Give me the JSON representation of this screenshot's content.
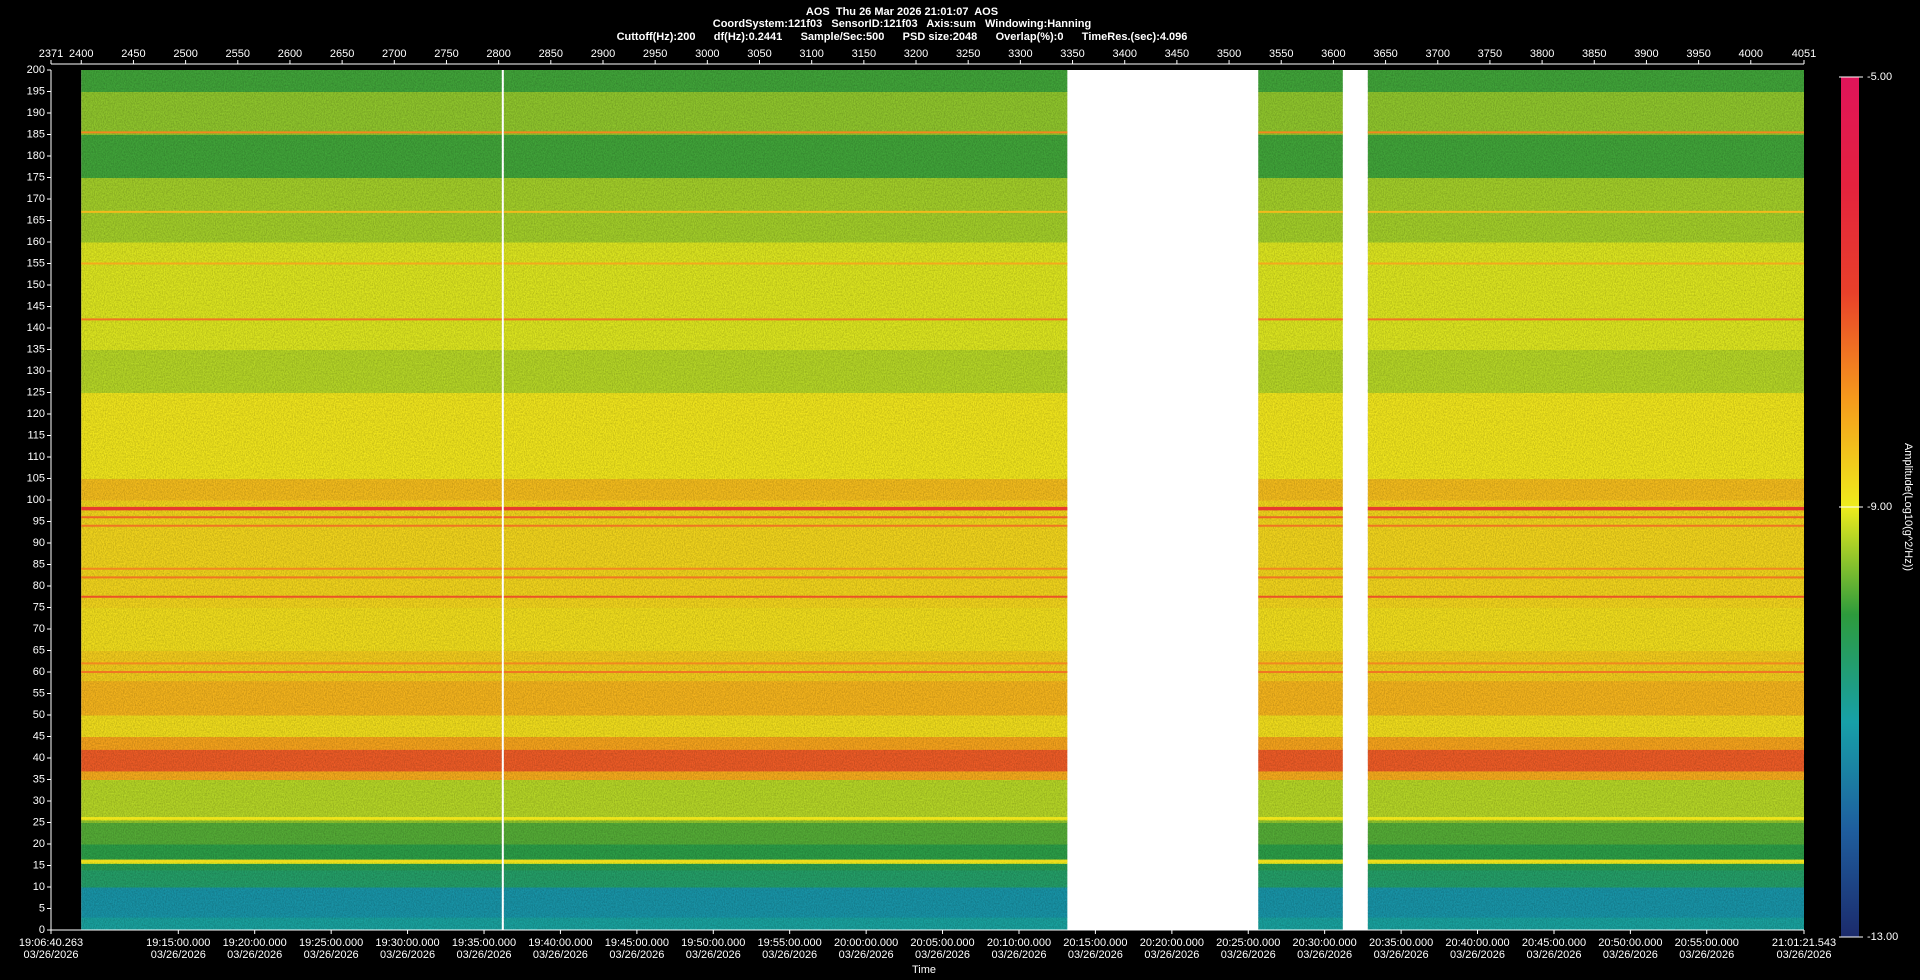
{
  "chart_data": {
    "type": "spectrogram",
    "title": "AOS  Thu 26 Mar 2026 21:01:07  AOS",
    "subtitle": [
      "CoordSystem:121f03   SensorID:121f03   Axis:sum   Windowing:Hanning",
      "Cuttoff(Hz):200      df(Hz):0.2441      Sample/Sec:500      PSD size:2048      Overlap(%):0      TimeRes.(sec):4.096"
    ],
    "xlabel": "Time",
    "clabel": "Amplitude(Log10(g^2/Hz))",
    "xlim": [
      2371,
      4051
    ],
    "xticks": [
      2371,
      2400,
      2450,
      2500,
      2550,
      2600,
      2650,
      2700,
      2750,
      2800,
      2850,
      2900,
      2950,
      3000,
      3050,
      3100,
      3150,
      3200,
      3250,
      3300,
      3350,
      3400,
      3450,
      3500,
      3550,
      3600,
      3650,
      3700,
      3750,
      3800,
      3850,
      3900,
      3950,
      4000,
      4051
    ],
    "xticks_bottom": [
      {
        "value": 2371,
        "label": "19:06:40.263",
        "date": "03/26/2026"
      },
      {
        "value": 2493.0,
        "label": "19:15:00.000",
        "date": "03/26/2026"
      },
      {
        "value": 2566.2,
        "label": "19:20:00.000",
        "date": "03/26/2026"
      },
      {
        "value": 2639.5,
        "label": "19:25:00.000",
        "date": "03/26/2026"
      },
      {
        "value": 2712.7,
        "label": "19:30:00.000",
        "date": "03/26/2026"
      },
      {
        "value": 2786.0,
        "label": "19:35:00.000",
        "date": "03/26/2026"
      },
      {
        "value": 2859.2,
        "label": "19:40:00.000",
        "date": "03/26/2026"
      },
      {
        "value": 2932.5,
        "label": "19:45:00.000",
        "date": "03/26/2026"
      },
      {
        "value": 3005.7,
        "label": "19:50:00.000",
        "date": "03/26/2026"
      },
      {
        "value": 3078.9,
        "label": "19:55:00.000",
        "date": "03/26/2026"
      },
      {
        "value": 3152.2,
        "label": "20:00:00.000",
        "date": "03/26/2026"
      },
      {
        "value": 3225.4,
        "label": "20:05:00.000",
        "date": "03/26/2026"
      },
      {
        "value": 3298.7,
        "label": "20:10:00.000",
        "date": "03/26/2026"
      },
      {
        "value": 3371.9,
        "label": "20:15:00.000",
        "date": "03/26/2026"
      },
      {
        "value": 3445.2,
        "label": "20:20:00.000",
        "date": "03/26/2026"
      },
      {
        "value": 3518.4,
        "label": "20:25:00.000",
        "date": "03/26/2026"
      },
      {
        "value": 3591.6,
        "label": "20:30:00.000",
        "date": "03/26/2026"
      },
      {
        "value": 3664.9,
        "label": "20:35:00.000",
        "date": "03/26/2026"
      },
      {
        "value": 3738.1,
        "label": "20:40:00.000",
        "date": "03/26/2026"
      },
      {
        "value": 3811.4,
        "label": "20:45:00.000",
        "date": "03/26/2026"
      },
      {
        "value": 3884.6,
        "label": "20:50:00.000",
        "date": "03/26/2026"
      },
      {
        "value": 3957.8,
        "label": "20:55:00.000",
        "date": "03/26/2026"
      },
      {
        "value": 4051,
        "label": "21:01:21.543",
        "date": "03/26/2026"
      }
    ],
    "ylim": [
      0,
      200
    ],
    "yticks": [
      0,
      5,
      10,
      15,
      20,
      25,
      30,
      35,
      40,
      45,
      50,
      55,
      60,
      65,
      70,
      75,
      80,
      85,
      90,
      95,
      100,
      105,
      110,
      115,
      120,
      125,
      130,
      135,
      140,
      145,
      150,
      155,
      160,
      165,
      170,
      175,
      180,
      185,
      190,
      195,
      200
    ],
    "clim": [
      -13,
      -5
    ],
    "cticks": [
      {
        "value": -13,
        "label": "-13.00"
      },
      {
        "value": -9,
        "label": "-9.00"
      },
      {
        "value": -5,
        "label": "-5.00"
      }
    ],
    "colormap": [
      "#1c2b6c",
      "#1e5e9e",
      "#17a0a8",
      "#2d9b3c",
      "#eeec1c",
      "#f59a1c",
      "#e8402a",
      "#e4223e",
      "#e0145a"
    ],
    "segments": [
      [
        2400,
        2803
      ],
      [
        2805,
        3345
      ],
      [
        3528,
        3609
      ],
      [
        3633,
        4051
      ]
    ],
    "bands": {
      "edges": [
        0,
        3,
        10,
        14,
        15.5,
        16.5,
        20,
        25,
        25.6,
        26.4,
        35,
        37,
        42,
        45,
        50,
        58,
        65,
        75,
        100,
        105,
        125,
        135,
        160,
        175,
        185,
        195,
        200
      ],
      "values": [
        -10.9,
        -11.2,
        -10.4,
        -10.2,
        -9.0,
        -10.1,
        -9.8,
        -9.5,
        -9.0,
        -9.3,
        -8.2,
        -7.3,
        -8.1,
        -8.8,
        -8.3,
        -8.6,
        -8.8,
        -8.7,
        -8.4,
        -8.9,
        -9.3,
        -9.1,
        -9.4,
        -9.9,
        -9.5,
        -9.9
      ]
    },
    "lines": {
      "freqs": [
        16,
        26,
        60,
        62,
        77.5,
        82,
        84,
        94,
        96,
        98,
        142,
        155,
        167,
        185.5
      ],
      "values": [
        -8.8,
        -8.9,
        -7.6,
        -7.8,
        -7.2,
        -7.6,
        -7.8,
        -7.6,
        -7.4,
        -6.8,
        -7.6,
        -8.2,
        -8.4,
        -7.8
      ]
    }
  }
}
